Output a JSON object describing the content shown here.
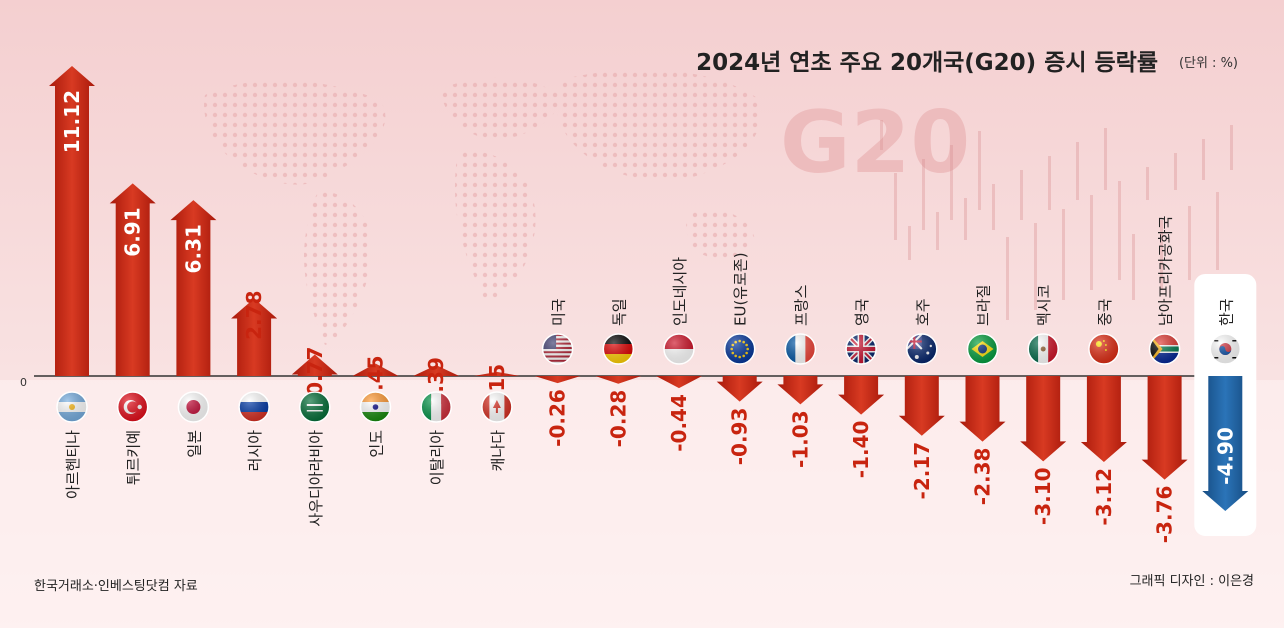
{
  "title": "2024년 연초 주요 20개국(G20) 증시 등락률",
  "unit": "(단위 : %)",
  "source": "한국거래소·인베스팅닷컴 자료",
  "credit": "그래픽 디자인 : 이은경",
  "watermark": "G20",
  "zero_label": "0",
  "colors": {
    "up": "#c8240f",
    "down": "#c8240f",
    "highlight": "#1d5f9e",
    "background_top": "#f6d3d3"
  },
  "chart_data": {
    "type": "bar",
    "categories": [
      "아르헨티나",
      "튀르키예",
      "일본",
      "러시아",
      "사우디아라비아",
      "인도",
      "이탈리아",
      "캐나다",
      "미국",
      "독일",
      "인도네시아",
      "EU(유로존)",
      "프랑스",
      "영국",
      "호주",
      "브라질",
      "멕시코",
      "중국",
      "남아프리카공화국",
      "한국"
    ],
    "value_labels": [
      "11.12",
      "6.91",
      "6.31",
      "2.78",
      "0.77",
      "0.45",
      "0.39",
      "0.15",
      "-0.26",
      "-0.28",
      "-0.44",
      "-0.93",
      "-1.03",
      "-1.40",
      "-2.17",
      "-2.38",
      "-3.10",
      "-3.12",
      "-3.76",
      "-4.90"
    ],
    "values": [
      11.12,
      6.91,
      6.31,
      2.78,
      0.77,
      0.45,
      0.39,
      0.15,
      -0.26,
      -0.28,
      -0.44,
      -0.93,
      -1.03,
      -1.4,
      -2.17,
      -2.38,
      -3.1,
      -3.12,
      -3.76,
      -4.9
    ],
    "flags": [
      "argentina",
      "turkey",
      "japan",
      "russia",
      "saudi-arabia",
      "india",
      "italy",
      "canada",
      "usa",
      "germany",
      "indonesia",
      "eu",
      "france",
      "uk",
      "australia",
      "brazil",
      "mexico",
      "china",
      "south-africa",
      "korea"
    ],
    "highlight": "한국",
    "title": "2024년 연초 주요 20개국(G20) 증시 등락률"
  }
}
